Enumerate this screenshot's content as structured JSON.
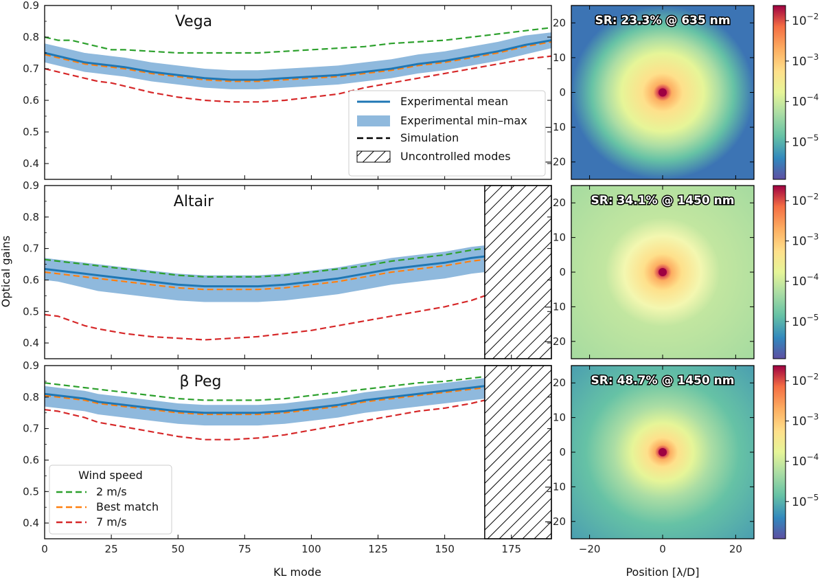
{
  "chart_data": [
    {
      "type": "line",
      "panel": "Vega",
      "title": "Vega",
      "xlabel": "",
      "ylabel": "",
      "xlim": [
        0,
        190
      ],
      "ylim": [
        0.35,
        0.9
      ],
      "uncontrolled_from": null,
      "series": [
        {
          "name": "2 m/s",
          "x": [
            0,
            5,
            10,
            15,
            20,
            25,
            30,
            40,
            50,
            60,
            70,
            80,
            90,
            100,
            110,
            120,
            130,
            140,
            150,
            160,
            170,
            180,
            190
          ],
          "values": [
            0.8,
            0.79,
            0.79,
            0.78,
            0.77,
            0.76,
            0.76,
            0.755,
            0.75,
            0.75,
            0.75,
            0.75,
            0.755,
            0.76,
            0.765,
            0.77,
            0.78,
            0.785,
            0.79,
            0.8,
            0.81,
            0.82,
            0.83
          ]
        },
        {
          "name": "Best match",
          "x": [
            0,
            5,
            10,
            15,
            20,
            25,
            30,
            40,
            50,
            60,
            70,
            80,
            90,
            100,
            110,
            120,
            130,
            140,
            150,
            160,
            170,
            180,
            190
          ],
          "values": [
            0.745,
            0.735,
            0.725,
            0.715,
            0.71,
            0.705,
            0.7,
            0.685,
            0.675,
            0.665,
            0.66,
            0.66,
            0.665,
            0.67,
            0.675,
            0.685,
            0.695,
            0.71,
            0.72,
            0.735,
            0.75,
            0.77,
            0.785
          ]
        },
        {
          "name": "7 m/s",
          "x": [
            0,
            5,
            10,
            15,
            20,
            25,
            30,
            40,
            50,
            60,
            70,
            80,
            90,
            100,
            110,
            120,
            130,
            140,
            150,
            160,
            170,
            180,
            190
          ],
          "values": [
            0.7,
            0.69,
            0.68,
            0.67,
            0.66,
            0.655,
            0.645,
            0.625,
            0.61,
            0.6,
            0.595,
            0.595,
            0.6,
            0.61,
            0.62,
            0.64,
            0.655,
            0.67,
            0.685,
            0.7,
            0.715,
            0.73,
            0.74
          ]
        },
        {
          "name": "Experimental mean",
          "x": [
            0,
            5,
            10,
            15,
            20,
            25,
            30,
            40,
            50,
            60,
            70,
            80,
            90,
            100,
            110,
            120,
            130,
            140,
            150,
            160,
            170,
            180,
            190
          ],
          "values": [
            0.75,
            0.74,
            0.73,
            0.72,
            0.715,
            0.71,
            0.705,
            0.69,
            0.68,
            0.67,
            0.665,
            0.665,
            0.67,
            0.675,
            0.68,
            0.69,
            0.7,
            0.715,
            0.725,
            0.74,
            0.755,
            0.775,
            0.79
          ]
        },
        {
          "name": "Experimental min–max lower",
          "x": [
            0,
            5,
            10,
            15,
            20,
            25,
            30,
            40,
            50,
            60,
            70,
            80,
            90,
            100,
            110,
            120,
            130,
            140,
            150,
            160,
            170,
            180,
            190
          ],
          "values": [
            0.72,
            0.71,
            0.7,
            0.69,
            0.685,
            0.68,
            0.675,
            0.66,
            0.65,
            0.64,
            0.635,
            0.635,
            0.64,
            0.645,
            0.65,
            0.66,
            0.67,
            0.685,
            0.695,
            0.71,
            0.725,
            0.745,
            0.765
          ]
        },
        {
          "name": "Experimental min–max upper",
          "x": [
            0,
            5,
            10,
            15,
            20,
            25,
            30,
            40,
            50,
            60,
            70,
            80,
            90,
            100,
            110,
            120,
            130,
            140,
            150,
            160,
            170,
            180,
            190
          ],
          "values": [
            0.78,
            0.77,
            0.76,
            0.75,
            0.745,
            0.74,
            0.735,
            0.72,
            0.71,
            0.7,
            0.695,
            0.695,
            0.7,
            0.705,
            0.71,
            0.72,
            0.73,
            0.745,
            0.755,
            0.77,
            0.785,
            0.805,
            0.815
          ]
        }
      ],
      "xticks": [
        "0",
        "25",
        "50",
        "75",
        "100",
        "125",
        "150",
        "175"
      ],
      "yticks": [
        "0.4",
        "0.5",
        "0.6",
        "0.7",
        "0.8",
        "0.9"
      ]
    },
    {
      "type": "line",
      "panel": "Altair",
      "title": "Altair",
      "xlabel": "",
      "ylabel": "Optical gains",
      "xlim": [
        0,
        190
      ],
      "ylim": [
        0.35,
        0.9
      ],
      "uncontrolled_from": 165,
      "series": [
        {
          "name": "2 m/s",
          "x": [
            0,
            5,
            10,
            15,
            20,
            30,
            40,
            50,
            60,
            70,
            80,
            90,
            100,
            110,
            120,
            130,
            140,
            150,
            160,
            165
          ],
          "values": [
            0.665,
            0.66,
            0.655,
            0.65,
            0.645,
            0.635,
            0.625,
            0.615,
            0.61,
            0.61,
            0.61,
            0.615,
            0.625,
            0.635,
            0.645,
            0.66,
            0.67,
            0.68,
            0.695,
            0.7
          ]
        },
        {
          "name": "Best match",
          "x": [
            0,
            5,
            10,
            15,
            20,
            30,
            40,
            50,
            60,
            70,
            80,
            90,
            100,
            110,
            120,
            130,
            140,
            150,
            160,
            165
          ],
          "values": [
            0.625,
            0.62,
            0.615,
            0.61,
            0.605,
            0.595,
            0.585,
            0.575,
            0.57,
            0.57,
            0.57,
            0.575,
            0.585,
            0.595,
            0.61,
            0.625,
            0.635,
            0.645,
            0.66,
            0.665
          ]
        },
        {
          "name": "7 m/s",
          "x": [
            0,
            5,
            10,
            15,
            20,
            30,
            40,
            50,
            60,
            70,
            80,
            90,
            100,
            110,
            120,
            130,
            140,
            150,
            160,
            165
          ],
          "values": [
            0.49,
            0.485,
            0.47,
            0.455,
            0.445,
            0.43,
            0.42,
            0.415,
            0.41,
            0.415,
            0.42,
            0.43,
            0.44,
            0.455,
            0.47,
            0.485,
            0.5,
            0.515,
            0.535,
            0.55
          ]
        },
        {
          "name": "Experimental mean",
          "x": [
            0,
            5,
            10,
            15,
            20,
            30,
            40,
            50,
            60,
            70,
            80,
            90,
            100,
            110,
            120,
            130,
            140,
            150,
            160,
            165
          ],
          "values": [
            0.635,
            0.63,
            0.625,
            0.62,
            0.615,
            0.605,
            0.595,
            0.585,
            0.58,
            0.58,
            0.58,
            0.585,
            0.595,
            0.605,
            0.62,
            0.635,
            0.645,
            0.655,
            0.67,
            0.675
          ]
        },
        {
          "name": "Experimental min–max lower",
          "x": [
            0,
            5,
            10,
            15,
            20,
            30,
            40,
            50,
            60,
            70,
            80,
            90,
            100,
            110,
            120,
            130,
            140,
            150,
            160,
            165
          ],
          "values": [
            0.6,
            0.595,
            0.585,
            0.575,
            0.565,
            0.555,
            0.545,
            0.535,
            0.53,
            0.53,
            0.53,
            0.535,
            0.545,
            0.555,
            0.57,
            0.585,
            0.595,
            0.605,
            0.62,
            0.625
          ]
        },
        {
          "name": "Experimental min–max upper",
          "x": [
            0,
            5,
            10,
            15,
            20,
            30,
            40,
            50,
            60,
            70,
            80,
            90,
            100,
            110,
            120,
            130,
            140,
            150,
            160,
            165
          ],
          "values": [
            0.67,
            0.665,
            0.66,
            0.655,
            0.65,
            0.64,
            0.63,
            0.62,
            0.615,
            0.615,
            0.615,
            0.62,
            0.63,
            0.64,
            0.655,
            0.67,
            0.68,
            0.69,
            0.705,
            0.71
          ]
        }
      ],
      "xticks": [
        "0",
        "25",
        "50",
        "75",
        "100",
        "125",
        "150",
        "175"
      ],
      "yticks": [
        "0.4",
        "0.5",
        "0.6",
        "0.7",
        "0.8",
        "0.9"
      ]
    },
    {
      "type": "line",
      "panel": "beta Peg",
      "title": "β Peg",
      "xlabel": "KL mode",
      "ylabel": "",
      "xlim": [
        0,
        190
      ],
      "ylim": [
        0.35,
        0.9
      ],
      "uncontrolled_from": 165,
      "series": [
        {
          "name": "2 m/s",
          "x": [
            0,
            5,
            10,
            15,
            20,
            30,
            40,
            50,
            60,
            70,
            80,
            90,
            100,
            110,
            120,
            130,
            140,
            150,
            160,
            165
          ],
          "values": [
            0.845,
            0.84,
            0.835,
            0.83,
            0.825,
            0.815,
            0.805,
            0.795,
            0.79,
            0.79,
            0.79,
            0.795,
            0.805,
            0.815,
            0.825,
            0.835,
            0.845,
            0.85,
            0.86,
            0.865
          ]
        },
        {
          "name": "Best match",
          "x": [
            0,
            5,
            10,
            15,
            20,
            30,
            40,
            50,
            60,
            70,
            80,
            90,
            100,
            110,
            120,
            130,
            140,
            150,
            160,
            165
          ],
          "values": [
            0.805,
            0.8,
            0.795,
            0.79,
            0.78,
            0.77,
            0.76,
            0.75,
            0.745,
            0.745,
            0.745,
            0.75,
            0.76,
            0.77,
            0.785,
            0.795,
            0.805,
            0.815,
            0.825,
            0.83
          ]
        },
        {
          "name": "7 m/s",
          "x": [
            0,
            5,
            10,
            15,
            20,
            30,
            40,
            50,
            60,
            70,
            80,
            90,
            100,
            110,
            120,
            130,
            140,
            150,
            160,
            165
          ],
          "values": [
            0.76,
            0.755,
            0.745,
            0.735,
            0.72,
            0.705,
            0.69,
            0.675,
            0.665,
            0.665,
            0.67,
            0.68,
            0.695,
            0.71,
            0.725,
            0.74,
            0.755,
            0.765,
            0.78,
            0.79
          ]
        },
        {
          "name": "Experimental mean",
          "x": [
            0,
            5,
            10,
            15,
            20,
            30,
            40,
            50,
            60,
            70,
            80,
            90,
            100,
            110,
            120,
            130,
            140,
            150,
            160,
            165
          ],
          "values": [
            0.81,
            0.805,
            0.8,
            0.795,
            0.785,
            0.775,
            0.765,
            0.755,
            0.75,
            0.75,
            0.75,
            0.755,
            0.765,
            0.775,
            0.79,
            0.8,
            0.81,
            0.82,
            0.83,
            0.835
          ]
        },
        {
          "name": "Experimental min–max lower",
          "x": [
            0,
            5,
            10,
            15,
            20,
            30,
            40,
            50,
            60,
            70,
            80,
            90,
            100,
            110,
            120,
            130,
            140,
            150,
            160,
            165
          ],
          "values": [
            0.77,
            0.765,
            0.76,
            0.755,
            0.745,
            0.735,
            0.725,
            0.715,
            0.71,
            0.71,
            0.71,
            0.715,
            0.725,
            0.735,
            0.75,
            0.76,
            0.77,
            0.78,
            0.79,
            0.795
          ]
        },
        {
          "name": "Experimental min–max upper",
          "x": [
            0,
            5,
            10,
            15,
            20,
            30,
            40,
            50,
            60,
            70,
            80,
            90,
            100,
            110,
            120,
            130,
            140,
            150,
            160,
            165
          ],
          "values": [
            0.835,
            0.83,
            0.825,
            0.82,
            0.81,
            0.8,
            0.79,
            0.78,
            0.775,
            0.775,
            0.775,
            0.78,
            0.79,
            0.8,
            0.815,
            0.825,
            0.835,
            0.845,
            0.855,
            0.86
          ]
        }
      ],
      "xticks": [
        "0",
        "25",
        "50",
        "75",
        "100",
        "125",
        "150",
        "175"
      ],
      "yticks": [
        "0.4",
        "0.5",
        "0.6",
        "0.7",
        "0.8",
        "0.9"
      ]
    },
    {
      "type": "heatmap",
      "panel": "psf-vega",
      "sr_label": "SR: 23.3% @ 635 nm",
      "xlim": [
        -25,
        25
      ],
      "ylim": [
        -25,
        25
      ],
      "xticks": [
        "−20",
        "0",
        "20"
      ],
      "yticks": [
        "20",
        "10",
        "0",
        "−10",
        "−20"
      ],
      "colorbar_ticks": [
        "10",
        "10",
        "10",
        "10"
      ],
      "colorbar_exponents": [
        "−2",
        "−3",
        "−4",
        "−5"
      ],
      "xlabel": ""
    },
    {
      "type": "heatmap",
      "panel": "psf-altair",
      "sr_label": "SR: 34.1% @ 1450 nm",
      "xlim": [
        -25,
        25
      ],
      "ylim": [
        -25,
        25
      ],
      "xticks": [
        "−20",
        "0",
        "20"
      ],
      "yticks": [
        "20",
        "10",
        "0",
        "−10",
        "−20"
      ],
      "colorbar_ticks": [
        "10",
        "10",
        "10",
        "10"
      ],
      "colorbar_exponents": [
        "−2",
        "−3",
        "−4",
        "−5"
      ],
      "xlabel": ""
    },
    {
      "type": "heatmap",
      "panel": "psf-betapeg",
      "sr_label": "SR: 48.7% @ 1450 nm",
      "xlim": [
        -25,
        25
      ],
      "ylim": [
        -25,
        25
      ],
      "xticks": [
        "−20",
        "0",
        "20"
      ],
      "yticks": [
        "20",
        "10",
        "0",
        "−10",
        "−20"
      ],
      "colorbar_ticks": [
        "10",
        "10",
        "10",
        "10"
      ],
      "colorbar_exponents": [
        "−2",
        "−3",
        "−4",
        "−5"
      ],
      "xlabel": "Position [λ/D]"
    }
  ],
  "legend_main": {
    "items": [
      "Experimental mean",
      "Experimental min–max",
      "Simulation",
      "Uncontrolled modes"
    ]
  },
  "legend_wind": {
    "title": "Wind speed",
    "items": [
      "2 m/s",
      "Best match",
      "7 m/s"
    ]
  },
  "colors": {
    "mean": "#1f77b4",
    "band": "#8fb9dd",
    "wind2": "#2ca02c",
    "best": "#ff7f0e",
    "wind7": "#d62728"
  }
}
